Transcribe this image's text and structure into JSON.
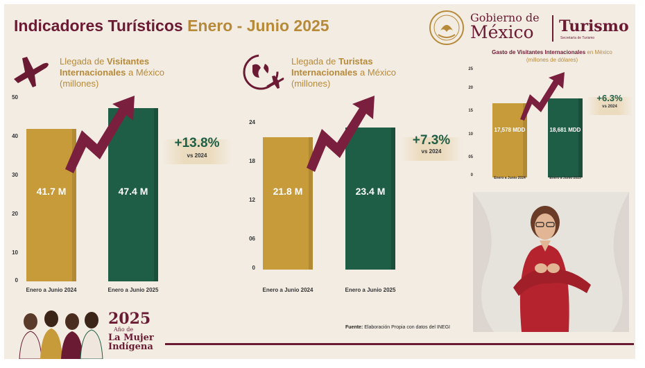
{
  "header": {
    "title_main": "Indicadores Turísticos",
    "title_period": "Enero - Junio 2025",
    "logo_gobierno": "Gobierno de",
    "logo_mexico": "México",
    "logo_turismo": "Turismo",
    "logo_secretaria": "Secretaría de Turismo"
  },
  "sections": [
    {
      "pre": "Llegada de",
      "bold": "Visitantes Internacionales",
      "post": "a México",
      "unit": "(millones)"
    },
    {
      "pre": "Llegada de",
      "bold": "Turistas Internacionales",
      "post": "a México",
      "unit": "(millones)"
    },
    {
      "bold": "Gasto de Visitantes Internacionales",
      "post": "en México",
      "unit": "(millones de dólares)"
    }
  ],
  "chart_data": [
    {
      "type": "bar",
      "title": "Llegada de Visitantes Internacionales a México (millones)",
      "categories": [
        "Enero a Junio 2024",
        "Enero a Junio 2025"
      ],
      "values": [
        41.7,
        47.4
      ],
      "value_labels": [
        "41.7 M",
        "47.4 M"
      ],
      "ylim": [
        0,
        50
      ],
      "yticks": [
        "0",
        "10",
        "20",
        "30",
        "40",
        "50"
      ],
      "change": "+13.8%",
      "change_note": "vs 2024",
      "colors": [
        "#c79a3a",
        "#1f5e46"
      ]
    },
    {
      "type": "bar",
      "title": "Llegada de Turistas Internacionales a México (millones)",
      "categories": [
        "Enero a Junio 2024",
        "Enero a Junio 2025"
      ],
      "values": [
        21.8,
        23.4
      ],
      "value_labels": [
        "21.8 M",
        "23.4 M"
      ],
      "ylim": [
        0,
        24
      ],
      "yticks": [
        "0",
        "06",
        "12",
        "18",
        "24"
      ],
      "change": "+7.3%",
      "change_note": "vs 2024",
      "colors": [
        "#c79a3a",
        "#1f5e46"
      ]
    },
    {
      "type": "bar",
      "title": "Gasto de Visitantes Internacionales en México (millones de dólares)",
      "categories": [
        "Enero a Junio 2024",
        "Enero a Junio 2025"
      ],
      "values": [
        17578,
        18681
      ],
      "value_labels": [
        "17,578 MDD",
        "18,681 MDD"
      ],
      "ylim": [
        0,
        25000
      ],
      "yticks": [
        "0",
        "05",
        "10",
        "15",
        "20",
        "25"
      ],
      "change": "+6.3%",
      "change_note": "vs 2024",
      "colors": [
        "#c79a3a",
        "#1f5e46"
      ]
    }
  ],
  "footer": {
    "fuente_label": "Fuente:",
    "fuente_text": "Elaboración Propia con datos del INEGI",
    "year": "2025",
    "year_caption": "Año de",
    "line1": "La Mujer",
    "line2": "Indígena"
  },
  "colors": {
    "maroon": "#6b1a33",
    "gold": "#c79a3a",
    "green": "#1f5e46",
    "background": "#f3ece3"
  }
}
